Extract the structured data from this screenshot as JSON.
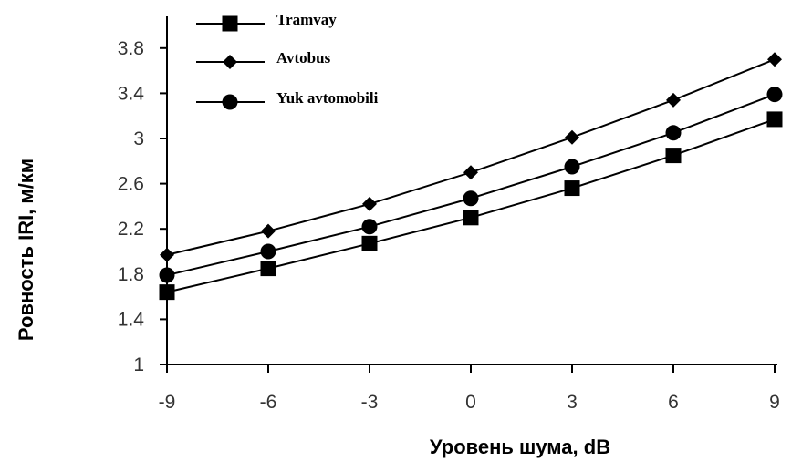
{
  "chart_data": {
    "type": "line",
    "title": "",
    "xlabel": "Уровень шума, dB",
    "ylabel": "Ровность IRI, м/км",
    "x": [
      -9,
      -6,
      -3,
      0,
      3,
      6,
      9
    ],
    "xticks": [
      "-9",
      "-6",
      "-3",
      "0",
      "3",
      "6",
      "9"
    ],
    "yticks": [
      "1",
      "1.4",
      "1.8",
      "2.2",
      "2.6",
      "3",
      "3.4",
      "3.8"
    ],
    "xlim": [
      -9,
      9
    ],
    "ylim": [
      1,
      4.0
    ],
    "grid": false,
    "legend_position": "top-left",
    "series": [
      {
        "name": "Tramvay",
        "marker": "square",
        "values": [
          1.64,
          1.85,
          2.07,
          2.3,
          2.56,
          2.85,
          3.17
        ]
      },
      {
        "name": "Avtobus",
        "marker": "diamond",
        "values": [
          1.97,
          2.18,
          2.42,
          2.7,
          3.01,
          3.34,
          3.7
        ]
      },
      {
        "name": "Yuk avtomobili",
        "marker": "circle",
        "values": [
          1.79,
          2.0,
          2.22,
          2.47,
          2.75,
          3.05,
          3.39
        ]
      }
    ],
    "colors": {
      "line": "#000000",
      "axis": "#000000"
    }
  }
}
